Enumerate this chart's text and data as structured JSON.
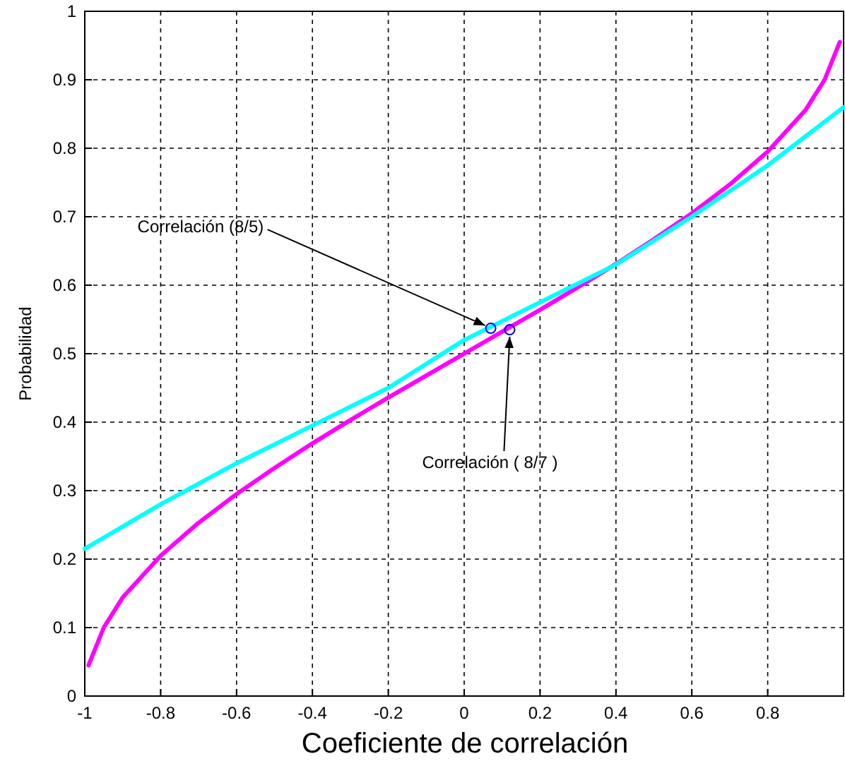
{
  "chart_data": {
    "type": "line",
    "xlabel": "Coeficiente de correlación",
    "ylabel": "Probabilidad",
    "xlim": [
      -1,
      1
    ],
    "ylim": [
      0,
      1
    ],
    "xticks": [
      -1,
      -0.8,
      -0.6,
      -0.4,
      -0.2,
      0,
      0.2,
      0.4,
      0.6,
      0.8
    ],
    "yticks": [
      0,
      0.1,
      0.2,
      0.3,
      0.4,
      0.5,
      0.6,
      0.7,
      0.8,
      0.9,
      1
    ],
    "grid": true,
    "line_style": "solid",
    "marker": "none",
    "series": [
      {
        "color": "#ff00ff",
        "x": [
          -0.99,
          -0.95,
          -0.9,
          -0.8,
          -0.7,
          -0.6,
          -0.5,
          -0.4,
          -0.3,
          -0.2,
          -0.1,
          0,
          0.1,
          0.2,
          0.3,
          0.4,
          0.5,
          0.6,
          0.7,
          0.8,
          0.9,
          0.95,
          0.99
        ],
        "values": [
          0.045,
          0.1,
          0.144,
          0.205,
          0.253,
          0.295,
          0.333,
          0.369,
          0.403,
          0.436,
          0.468,
          0.5,
          0.532,
          0.564,
          0.597,
          0.631,
          0.667,
          0.705,
          0.747,
          0.795,
          0.856,
          0.9,
          0.955
        ]
      },
      {
        "color": "#00ffff",
        "x": [
          -1,
          -0.8,
          -0.6,
          -0.4,
          -0.2,
          0,
          0.2,
          0.4,
          0.6,
          0.8,
          1
        ],
        "values": [
          0.215,
          0.28,
          0.34,
          0.395,
          0.45,
          0.52,
          0.575,
          0.63,
          0.7,
          0.775,
          0.86
        ]
      },
      {
        "type": "scatter",
        "marker": "circle",
        "color": "#0000ff",
        "x": [
          0.07,
          0.12
        ],
        "values": [
          0.537,
          0.535
        ]
      }
    ],
    "annotations": [
      {
        "text": "Correlación (8/5)",
        "x": 0.07,
        "y": 0.537
      },
      {
        "text": "Correlación ( 8/7 )",
        "x": 0.12,
        "y": 0.535
      }
    ]
  }
}
